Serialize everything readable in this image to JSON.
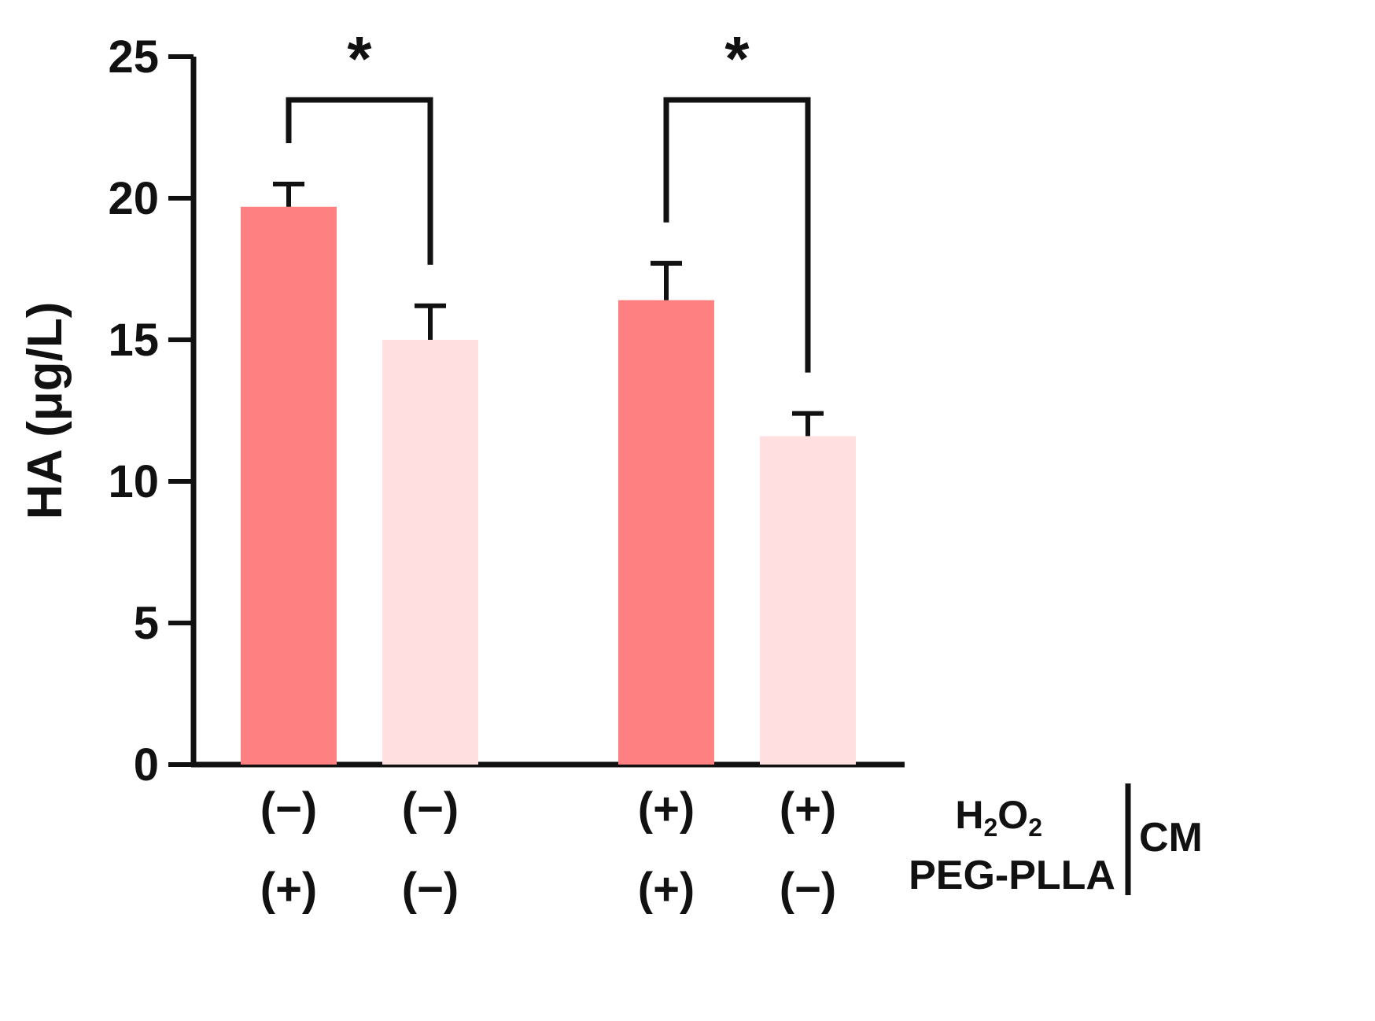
{
  "chart_data": {
    "type": "bar",
    "ylabel": "HA (μg/L)",
    "ylim": [
      0,
      25
    ],
    "yticks": [
      0,
      5,
      10,
      15,
      20,
      25
    ],
    "grid": false,
    "bars": [
      {
        "value": 19.7,
        "error": 0.8,
        "color": "#ff8080",
        "h2o2": "(−)",
        "peg": "(+)"
      },
      {
        "value": 15.0,
        "error": 1.2,
        "color": "#ffdfe0",
        "h2o2": "(−)",
        "peg": "(−)"
      },
      {
        "value": 16.4,
        "error": 1.3,
        "color": "#ff8080",
        "h2o2": "(+)",
        "peg": "(+)"
      },
      {
        "value": 11.6,
        "error": 0.8,
        "color": "#ffdfe0",
        "h2o2": "(+)",
        "peg": "(−)"
      }
    ],
    "row_labels": {
      "h2o2_base": "H",
      "h2o2_sub1": "2",
      "h2o2_mid": "O",
      "h2o2_sub2": "2",
      "peg": "PEG-PLLA"
    },
    "group_label": "CM",
    "significance": [
      {
        "from": 0,
        "to": 1,
        "label": "*"
      },
      {
        "from": 2,
        "to": 3,
        "label": "*"
      }
    ]
  }
}
